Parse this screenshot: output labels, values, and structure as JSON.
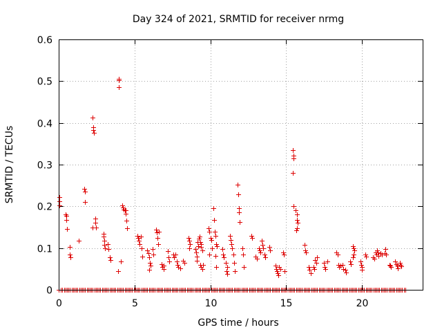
{
  "chart_data": {
    "type": "scatter",
    "title": "Day 324 of 2021, SRMTID for receiver nrmg",
    "xlabel": "GPS time / hours",
    "ylabel": "SRMTID / TECUs",
    "xlim": [
      0,
      24
    ],
    "ylim": [
      0,
      0.6
    ],
    "xticks": [
      0,
      5,
      10,
      15,
      20
    ],
    "xtick_labels": [
      "0",
      "5",
      "10",
      "15",
      "20"
    ],
    "yticks": [
      0,
      0.1,
      0.2,
      0.3,
      0.4,
      0.5,
      0.6
    ],
    "ytick_labels": [
      "0",
      "0.1",
      "0.2",
      "0.3",
      "0.4",
      "0.5",
      "0.6"
    ],
    "grid": true,
    "marker": "plus",
    "color": "#dd0000",
    "series": [
      {
        "name": "SRMTID",
        "points": [
          [
            0.05,
            0.222
          ],
          [
            0.05,
            0.212
          ],
          [
            0.05,
            0.203
          ],
          [
            0.45,
            0.181
          ],
          [
            0.5,
            0.177
          ],
          [
            0.52,
            0.168
          ],
          [
            0.55,
            0.146
          ],
          [
            0.75,
            0.102
          ],
          [
            0.75,
            0.085
          ],
          [
            0.78,
            0.078
          ],
          [
            1.3,
            0.118
          ],
          [
            1.7,
            0.242
          ],
          [
            1.72,
            0.235
          ],
          [
            1.75,
            0.211
          ],
          [
            2.25,
            0.413
          ],
          [
            2.27,
            0.39
          ],
          [
            2.28,
            0.383
          ],
          [
            2.3,
            0.376
          ],
          [
            2.25,
            0.15
          ],
          [
            2.4,
            0.17
          ],
          [
            2.42,
            0.16
          ],
          [
            2.45,
            0.15
          ],
          [
            2.95,
            0.135
          ],
          [
            2.97,
            0.128
          ],
          [
            3.0,
            0.117
          ],
          [
            3.0,
            0.107
          ],
          [
            3.05,
            0.1
          ],
          [
            3.25,
            0.11
          ],
          [
            3.3,
            0.098
          ],
          [
            3.35,
            0.078
          ],
          [
            3.4,
            0.072
          ],
          [
            3.95,
            0.505
          ],
          [
            3.97,
            0.502
          ],
          [
            3.95,
            0.485
          ],
          [
            3.9,
            0.044
          ],
          [
            4.1,
            0.068
          ],
          [
            4.2,
            0.203
          ],
          [
            4.25,
            0.198
          ],
          [
            4.3,
            0.193
          ],
          [
            4.35,
            0.191
          ],
          [
            4.4,
            0.19
          ],
          [
            4.42,
            0.183
          ],
          [
            4.45,
            0.165
          ],
          [
            4.5,
            0.148
          ],
          [
            5.2,
            0.13
          ],
          [
            5.25,
            0.125
          ],
          [
            5.3,
            0.118
          ],
          [
            5.35,
            0.11
          ],
          [
            5.4,
            0.128
          ],
          [
            5.45,
            0.1
          ],
          [
            5.5,
            0.08
          ],
          [
            5.85,
            0.095
          ],
          [
            5.9,
            0.088
          ],
          [
            5.95,
            0.078
          ],
          [
            6.0,
            0.065
          ],
          [
            6.05,
            0.058
          ],
          [
            5.95,
            0.048
          ],
          [
            6.2,
            0.098
          ],
          [
            6.25,
            0.085
          ],
          [
            6.4,
            0.145
          ],
          [
            6.45,
            0.138
          ],
          [
            6.5,
            0.125
          ],
          [
            6.55,
            0.11
          ],
          [
            6.6,
            0.14
          ],
          [
            6.8,
            0.062
          ],
          [
            6.85,
            0.055
          ],
          [
            6.9,
            0.05
          ],
          [
            6.9,
            0.058
          ],
          [
            7.2,
            0.092
          ],
          [
            7.25,
            0.078
          ],
          [
            7.3,
            0.068
          ],
          [
            7.55,
            0.085
          ],
          [
            7.6,
            0.078
          ],
          [
            7.7,
            0.085
          ],
          [
            7.8,
            0.068
          ],
          [
            7.85,
            0.06
          ],
          [
            7.9,
            0.055
          ],
          [
            8.0,
            0.052
          ],
          [
            8.2,
            0.07
          ],
          [
            8.3,
            0.065
          ],
          [
            8.55,
            0.125
          ],
          [
            8.6,
            0.118
          ],
          [
            8.65,
            0.11
          ],
          [
            8.6,
            0.1
          ],
          [
            9.0,
            0.098
          ],
          [
            9.05,
            0.09
          ],
          [
            9.1,
            0.08
          ],
          [
            9.1,
            0.07
          ],
          [
            9.15,
            0.115
          ],
          [
            9.2,
            0.105
          ],
          [
            9.25,
            0.122
          ],
          [
            9.3,
            0.128
          ],
          [
            9.35,
            0.115
          ],
          [
            9.4,
            0.11
          ],
          [
            9.4,
            0.102
          ],
          [
            9.45,
            0.095
          ],
          [
            9.35,
            0.06
          ],
          [
            9.4,
            0.055
          ],
          [
            9.45,
            0.05
          ],
          [
            9.5,
            0.06
          ],
          [
            9.9,
            0.148
          ],
          [
            9.95,
            0.14
          ],
          [
            10.0,
            0.125
          ],
          [
            10.05,
            0.12
          ],
          [
            10.1,
            0.1
          ],
          [
            9.95,
            0.085
          ],
          [
            10.2,
            0.195
          ],
          [
            10.25,
            0.168
          ],
          [
            10.3,
            0.14
          ],
          [
            10.35,
            0.13
          ],
          [
            10.4,
            0.11
          ],
          [
            10.45,
            0.105
          ],
          [
            10.35,
            0.082
          ],
          [
            10.4,
            0.055
          ],
          [
            10.8,
            0.098
          ],
          [
            10.85,
            0.085
          ],
          [
            10.9,
            0.078
          ],
          [
            11.0,
            0.065
          ],
          [
            11.1,
            0.055
          ],
          [
            11.05,
            0.045
          ],
          [
            11.1,
            0.038
          ],
          [
            11.3,
            0.13
          ],
          [
            11.35,
            0.12
          ],
          [
            11.4,
            0.11
          ],
          [
            11.45,
            0.1
          ],
          [
            11.5,
            0.085
          ],
          [
            11.55,
            0.065
          ],
          [
            11.6,
            0.045
          ],
          [
            11.8,
            0.252
          ],
          [
            11.85,
            0.228
          ],
          [
            11.9,
            0.195
          ],
          [
            11.9,
            0.185
          ],
          [
            11.95,
            0.162
          ],
          [
            12.1,
            0.1
          ],
          [
            12.15,
            0.085
          ],
          [
            12.2,
            0.055
          ],
          [
            12.7,
            0.13
          ],
          [
            12.75,
            0.125
          ],
          [
            13.0,
            0.08
          ],
          [
            13.05,
            0.075
          ],
          [
            13.2,
            0.1
          ],
          [
            13.25,
            0.095
          ],
          [
            13.3,
            0.09
          ],
          [
            13.4,
            0.118
          ],
          [
            13.45,
            0.108
          ],
          [
            13.5,
            0.1
          ],
          [
            13.55,
            0.085
          ],
          [
            13.6,
            0.078
          ],
          [
            13.9,
            0.102
          ],
          [
            13.95,
            0.095
          ],
          [
            14.3,
            0.058
          ],
          [
            14.35,
            0.05
          ],
          [
            14.4,
            0.045
          ],
          [
            14.45,
            0.04
          ],
          [
            14.5,
            0.035
          ],
          [
            14.55,
            0.055
          ],
          [
            14.6,
            0.05
          ],
          [
            14.8,
            0.09
          ],
          [
            14.85,
            0.085
          ],
          [
            14.9,
            0.045
          ],
          [
            15.45,
            0.335
          ],
          [
            15.5,
            0.322
          ],
          [
            15.5,
            0.315
          ],
          [
            15.45,
            0.28
          ],
          [
            15.5,
            0.2
          ],
          [
            15.6,
            0.19
          ],
          [
            15.7,
            0.18
          ],
          [
            15.7,
            0.168
          ],
          [
            15.75,
            0.16
          ],
          [
            15.7,
            0.148
          ],
          [
            15.65,
            0.142
          ],
          [
            16.2,
            0.108
          ],
          [
            16.25,
            0.095
          ],
          [
            16.3,
            0.09
          ],
          [
            16.5,
            0.055
          ],
          [
            16.55,
            0.048
          ],
          [
            16.6,
            0.04
          ],
          [
            16.8,
            0.055
          ],
          [
            16.85,
            0.05
          ],
          [
            16.9,
            0.072
          ],
          [
            17.0,
            0.065
          ],
          [
            17.05,
            0.078
          ],
          [
            17.5,
            0.065
          ],
          [
            17.55,
            0.055
          ],
          [
            17.6,
            0.05
          ],
          [
            17.7,
            0.068
          ],
          [
            18.3,
            0.09
          ],
          [
            18.4,
            0.085
          ],
          [
            18.45,
            0.06
          ],
          [
            18.5,
            0.055
          ],
          [
            18.6,
            0.058
          ],
          [
            18.7,
            0.06
          ],
          [
            18.75,
            0.05
          ],
          [
            18.9,
            0.048
          ],
          [
            18.95,
            0.042
          ],
          [
            19.2,
            0.068
          ],
          [
            19.25,
            0.062
          ],
          [
            19.4,
            0.105
          ],
          [
            19.45,
            0.1
          ],
          [
            19.5,
            0.095
          ],
          [
            19.45,
            0.085
          ],
          [
            19.4,
            0.078
          ],
          [
            19.9,
            0.068
          ],
          [
            19.95,
            0.06
          ],
          [
            20.0,
            0.055
          ],
          [
            20.0,
            0.048
          ],
          [
            20.2,
            0.085
          ],
          [
            20.25,
            0.08
          ],
          [
            20.7,
            0.078
          ],
          [
            20.8,
            0.075
          ],
          [
            20.9,
            0.09
          ],
          [
            20.95,
            0.085
          ],
          [
            21.0,
            0.095
          ],
          [
            21.05,
            0.09
          ],
          [
            21.1,
            0.082
          ],
          [
            21.2,
            0.088
          ],
          [
            21.3,
            0.085
          ],
          [
            21.5,
            0.088
          ],
          [
            21.55,
            0.098
          ],
          [
            21.6,
            0.085
          ],
          [
            21.8,
            0.06
          ],
          [
            21.85,
            0.058
          ],
          [
            21.9,
            0.055
          ],
          [
            22.2,
            0.068
          ],
          [
            22.25,
            0.062
          ],
          [
            22.3,
            0.058
          ],
          [
            22.35,
            0.052
          ],
          [
            22.5,
            0.065
          ],
          [
            22.55,
            0.06
          ],
          [
            22.6,
            0.056
          ]
        ],
        "baseline_x": [
          0.0,
          0.15,
          0.25,
          0.35,
          0.45,
          0.55,
          0.65,
          0.75,
          0.85,
          0.95,
          1.05,
          1.15,
          1.25,
          1.35,
          1.45,
          1.55,
          1.65,
          1.75,
          1.85,
          1.95,
          2.05,
          2.15,
          2.25,
          2.35,
          2.45,
          2.55,
          2.65,
          2.75,
          2.85,
          2.95,
          3.05,
          3.15,
          3.25,
          3.35,
          3.45,
          3.55,
          3.65,
          3.75,
          3.85,
          3.95,
          4.05,
          4.15,
          4.25,
          4.35,
          4.45,
          4.55,
          4.65,
          4.75,
          4.85,
          4.95,
          5.05,
          5.15,
          5.25,
          5.35,
          5.45,
          5.55,
          5.65,
          5.75,
          5.85,
          5.95,
          6.05,
          6.15,
          6.25,
          6.35,
          6.45,
          6.55,
          6.65,
          6.75,
          6.85,
          6.95,
          7.05,
          7.15,
          7.25,
          7.35,
          7.45,
          7.55,
          7.65,
          7.75,
          7.85,
          7.95,
          8.05,
          8.15,
          8.25,
          8.35,
          8.45,
          8.55,
          8.65,
          8.75,
          8.85,
          8.95,
          9.05,
          9.15,
          9.25,
          9.35,
          9.45,
          9.55,
          9.65,
          9.75,
          9.85,
          9.95,
          10.05,
          10.15,
          10.25,
          10.35,
          10.45,
          10.55,
          10.65,
          10.75,
          10.85,
          10.95,
          11.05,
          11.15,
          11.25,
          11.35,
          11.45,
          11.55,
          11.65,
          11.75,
          11.85,
          11.95,
          12.05,
          12.15,
          12.25,
          12.35,
          12.45,
          12.55,
          12.65,
          12.75,
          12.85,
          12.95,
          13.05,
          13.15,
          13.25,
          13.35,
          13.45,
          13.55,
          13.65,
          13.75,
          13.85,
          13.95,
          14.05,
          14.15,
          14.25,
          14.35,
          14.45,
          14.55,
          14.65,
          14.75,
          14.85,
          14.95,
          15.05,
          15.15,
          15.25,
          15.35,
          15.45,
          15.55,
          15.65,
          15.75,
          15.85,
          15.95,
          16.05,
          16.15,
          16.25,
          16.35,
          16.45,
          16.55,
          16.65,
          16.75,
          16.85,
          16.95,
          17.05,
          17.15,
          17.25,
          17.35,
          17.45,
          17.55,
          17.65,
          17.75,
          17.85,
          17.95,
          18.05,
          18.15,
          18.25,
          18.35,
          18.45,
          18.55,
          18.65,
          18.75,
          18.85,
          18.95,
          19.05,
          19.15,
          19.25,
          19.35,
          19.45,
          19.55,
          19.65,
          19.75,
          19.85,
          19.95,
          20.05,
          20.15,
          20.25,
          20.35,
          20.45,
          20.55,
          20.65,
          20.75,
          20.85,
          20.95,
          21.05,
          21.15,
          21.25,
          21.35,
          21.45,
          21.55,
          21.65,
          21.75,
          21.85,
          21.95,
          22.05,
          22.15,
          22.25,
          22.35,
          22.45,
          22.55,
          22.65,
          22.75,
          22.85
        ]
      }
    ]
  }
}
